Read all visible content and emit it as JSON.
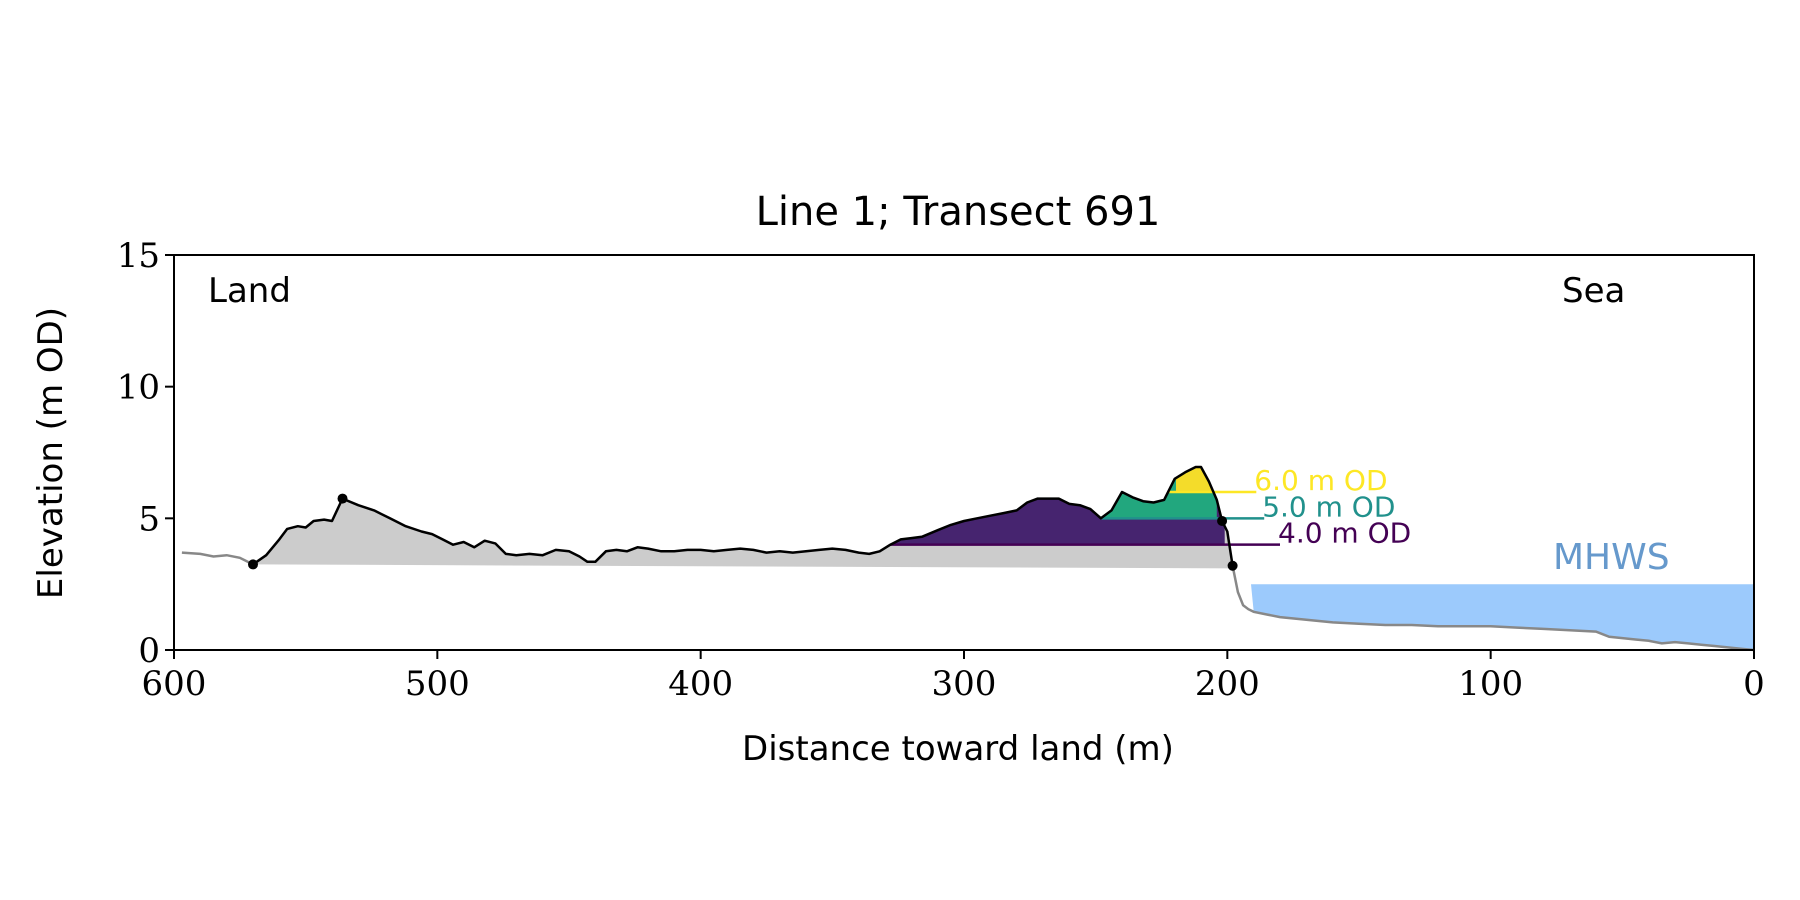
{
  "chart_data": {
    "type": "area",
    "title": "Line 1; Transect 691",
    "xlabel": "Distance toward land (m)",
    "ylabel": "Elevation (m OD)",
    "xlim": [
      600,
      0
    ],
    "ylim": [
      0,
      15
    ],
    "xticks": [
      600,
      500,
      400,
      300,
      200,
      100,
      0
    ],
    "yticks": [
      0,
      5,
      10,
      15
    ],
    "grid": false,
    "corner_labels": {
      "land": "Land",
      "sea": "Sea"
    },
    "colors": {
      "sand": "#cccccc",
      "profile_outer": "#888888",
      "profile_dune": "#000000",
      "level_4": "#440154",
      "level_5": "#21918c",
      "level_6": "#fde725",
      "vol_4": "#46246f",
      "vol_5": "#22a77e",
      "vol_6": "#f4dc2a",
      "mhws": "#9ccafc",
      "mhws_label": "#6699cc"
    },
    "mhws": {
      "label": "MHWS",
      "elevation": 2.5
    },
    "contours": [
      {
        "label": "4.0 m OD",
        "elevation": 4.0,
        "x_start": 328,
        "x_end": 180
      },
      {
        "label": "5.0 m OD",
        "elevation": 5.0,
        "x_start": 248,
        "x_end": 186
      },
      {
        "label": "6.0 m OD",
        "elevation": 6.0,
        "x_start": 222,
        "x_end": 189
      }
    ],
    "key_points": [
      {
        "x": 570,
        "y": 3.25
      },
      {
        "x": 536,
        "y": 5.75
      },
      {
        "x": 202,
        "y": 4.9
      },
      {
        "x": 198,
        "y": 3.2
      }
    ],
    "base_line": [
      [
        570,
        3.25
      ],
      [
        198,
        3.1
      ]
    ],
    "profile": [
      [
        597,
        3.7
      ],
      [
        590,
        3.65
      ],
      [
        585,
        3.55
      ],
      [
        580,
        3.6
      ],
      [
        575,
        3.5
      ],
      [
        570,
        3.25
      ],
      [
        565,
        3.6
      ],
      [
        560,
        4.2
      ],
      [
        557,
        4.6
      ],
      [
        553,
        4.7
      ],
      [
        550,
        4.65
      ],
      [
        547,
        4.9
      ],
      [
        543,
        4.95
      ],
      [
        540,
        4.9
      ],
      [
        536,
        5.75
      ],
      [
        530,
        5.5
      ],
      [
        524,
        5.3
      ],
      [
        518,
        5.0
      ],
      [
        512,
        4.7
      ],
      [
        506,
        4.5
      ],
      [
        502,
        4.4
      ],
      [
        498,
        4.2
      ],
      [
        494,
        4.0
      ],
      [
        490,
        4.1
      ],
      [
        486,
        3.9
      ],
      [
        482,
        4.15
      ],
      [
        478,
        4.05
      ],
      [
        474,
        3.65
      ],
      [
        470,
        3.6
      ],
      [
        465,
        3.65
      ],
      [
        460,
        3.6
      ],
      [
        455,
        3.8
      ],
      [
        450,
        3.75
      ],
      [
        446,
        3.55
      ],
      [
        443,
        3.35
      ],
      [
        440,
        3.35
      ],
      [
        436,
        3.75
      ],
      [
        432,
        3.8
      ],
      [
        428,
        3.75
      ],
      [
        424,
        3.9
      ],
      [
        420,
        3.85
      ],
      [
        415,
        3.75
      ],
      [
        410,
        3.75
      ],
      [
        405,
        3.8
      ],
      [
        400,
        3.8
      ],
      [
        395,
        3.75
      ],
      [
        390,
        3.8
      ],
      [
        385,
        3.85
      ],
      [
        380,
        3.8
      ],
      [
        375,
        3.7
      ],
      [
        370,
        3.75
      ],
      [
        365,
        3.7
      ],
      [
        360,
        3.75
      ],
      [
        355,
        3.8
      ],
      [
        350,
        3.85
      ],
      [
        345,
        3.8
      ],
      [
        340,
        3.7
      ],
      [
        336,
        3.65
      ],
      [
        332,
        3.75
      ],
      [
        328,
        4.0
      ],
      [
        324,
        4.2
      ],
      [
        320,
        4.25
      ],
      [
        316,
        4.3
      ],
      [
        310,
        4.55
      ],
      [
        305,
        4.75
      ],
      [
        300,
        4.9
      ],
      [
        295,
        5.0
      ],
      [
        290,
        5.1
      ],
      [
        285,
        5.2
      ],
      [
        280,
        5.3
      ],
      [
        276,
        5.6
      ],
      [
        272,
        5.75
      ],
      [
        268,
        5.75
      ],
      [
        264,
        5.75
      ],
      [
        260,
        5.55
      ],
      [
        256,
        5.5
      ],
      [
        252,
        5.35
      ],
      [
        248,
        5.0
      ],
      [
        244,
        5.3
      ],
      [
        240,
        6.0
      ],
      [
        236,
        5.8
      ],
      [
        232,
        5.65
      ],
      [
        228,
        5.6
      ],
      [
        224,
        5.7
      ],
      [
        220,
        6.5
      ],
      [
        216,
        6.75
      ],
      [
        212,
        6.95
      ],
      [
        210,
        6.95
      ],
      [
        207,
        6.4
      ],
      [
        204,
        5.7
      ],
      [
        202,
        4.9
      ],
      [
        200,
        4.5
      ],
      [
        198,
        3.2
      ],
      [
        196,
        2.2
      ],
      [
        194,
        1.7
      ],
      [
        192,
        1.55
      ],
      [
        190,
        1.45
      ],
      [
        185,
        1.35
      ],
      [
        180,
        1.25
      ],
      [
        170,
        1.15
      ],
      [
        160,
        1.05
      ],
      [
        150,
        1.0
      ],
      [
        140,
        0.95
      ],
      [
        130,
        0.95
      ],
      [
        120,
        0.9
      ],
      [
        110,
        0.9
      ],
      [
        100,
        0.9
      ],
      [
        90,
        0.85
      ],
      [
        80,
        0.8
      ],
      [
        70,
        0.75
      ],
      [
        60,
        0.7
      ],
      [
        55,
        0.5
      ],
      [
        50,
        0.45
      ],
      [
        45,
        0.4
      ],
      [
        40,
        0.35
      ],
      [
        35,
        0.25
      ],
      [
        30,
        0.3
      ],
      [
        25,
        0.25
      ],
      [
        20,
        0.2
      ],
      [
        15,
        0.15
      ],
      [
        10,
        0.1
      ],
      [
        5,
        0.05
      ],
      [
        0,
        0.0
      ]
    ]
  }
}
